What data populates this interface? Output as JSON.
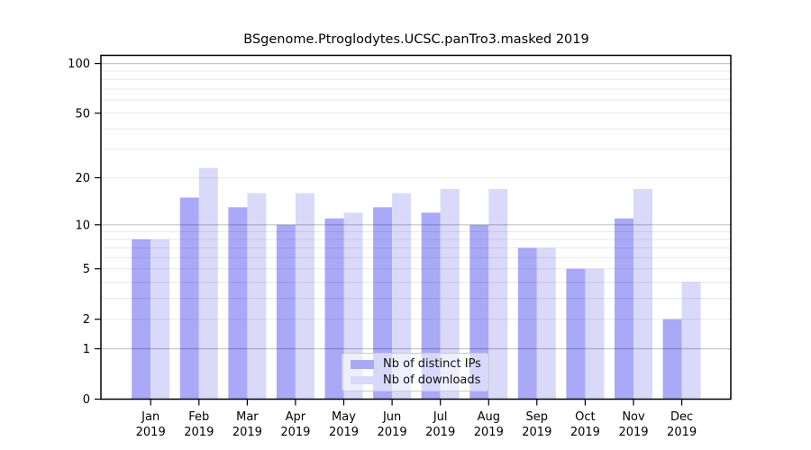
{
  "chart_data": {
    "type": "bar",
    "title": "BSgenome.Ptroglodytes.UCSC.panTro3.masked 2019",
    "categories": [
      "Jan",
      "Feb",
      "Mar",
      "Apr",
      "May",
      "Jun",
      "Jul",
      "Aug",
      "Sep",
      "Oct",
      "Nov",
      "Dec"
    ],
    "category_year": "2019",
    "series": [
      {
        "name": "Nb of distinct IPs",
        "color": "#a9a9f8",
        "values": [
          8,
          15,
          13,
          10,
          11,
          13,
          12,
          10,
          7,
          5,
          11,
          2
        ]
      },
      {
        "name": "Nb of downloads",
        "color": "#d9d9fa",
        "values": [
          8,
          23,
          16,
          16,
          12,
          16,
          17,
          17,
          7,
          5,
          17,
          4
        ]
      }
    ],
    "yscale": "log1p",
    "ylim": [
      0,
      112
    ],
    "yticks": [
      0,
      1,
      2,
      5,
      10,
      20,
      50,
      100
    ],
    "major_gridlines": [
      1,
      10,
      100
    ],
    "minor_gridlines": [
      2,
      3,
      4,
      5,
      6,
      7,
      8,
      9,
      20,
      30,
      40,
      50,
      60,
      70,
      80,
      90
    ],
    "grid": true,
    "legend_position": "inside-bottom-center",
    "xlabel": "",
    "ylabel": ""
  },
  "colors": {
    "axis": "#000000",
    "major_grid": "#c4c4c4",
    "minor_grid": "#e9e9e9",
    "background": "#ffffff"
  }
}
